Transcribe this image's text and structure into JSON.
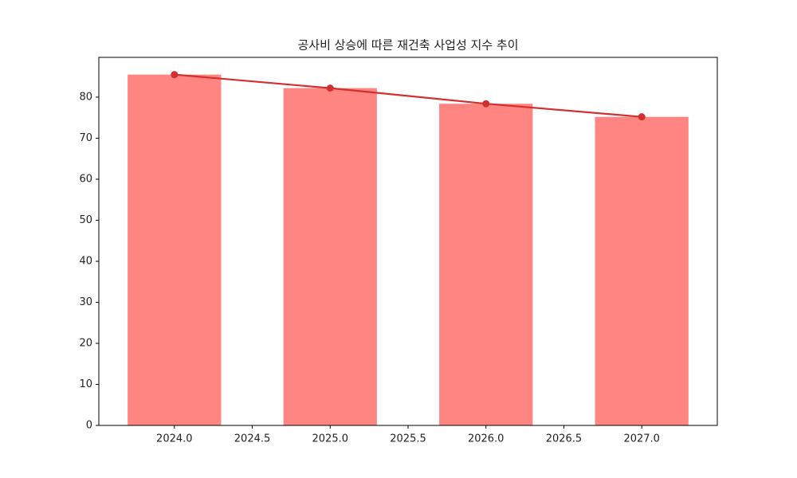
{
  "chart_data": {
    "type": "bar",
    "title": "공사비 상승에 따른 재건축 사업성 지수 추이",
    "x": [
      2024,
      2025,
      2026,
      2027
    ],
    "series": [
      {
        "type": "bar",
        "color": "#ff8582",
        "values": [
          85.5,
          82.2,
          78.4,
          75.2
        ]
      },
      {
        "type": "line",
        "color": "#d32f2f",
        "values": [
          85.5,
          82.2,
          78.4,
          75.2
        ]
      }
    ],
    "xlim": [
      2023.515,
      2027.485
    ],
    "xticks": [
      {
        "value": 2024,
        "label": "2024.0"
      },
      {
        "value": 2024.5,
        "label": "2024.5"
      },
      {
        "value": 2025,
        "label": "2025.0"
      },
      {
        "value": 2025.5,
        "label": "2025.5"
      },
      {
        "value": 2026,
        "label": "2026.0"
      },
      {
        "value": 2026.5,
        "label": "2026.5"
      },
      {
        "value": 2027,
        "label": "2027.0"
      }
    ],
    "ylim": [
      0,
      89.7
    ],
    "yticks": [
      0,
      10,
      20,
      30,
      40,
      50,
      60,
      70,
      80
    ],
    "grid": false
  }
}
